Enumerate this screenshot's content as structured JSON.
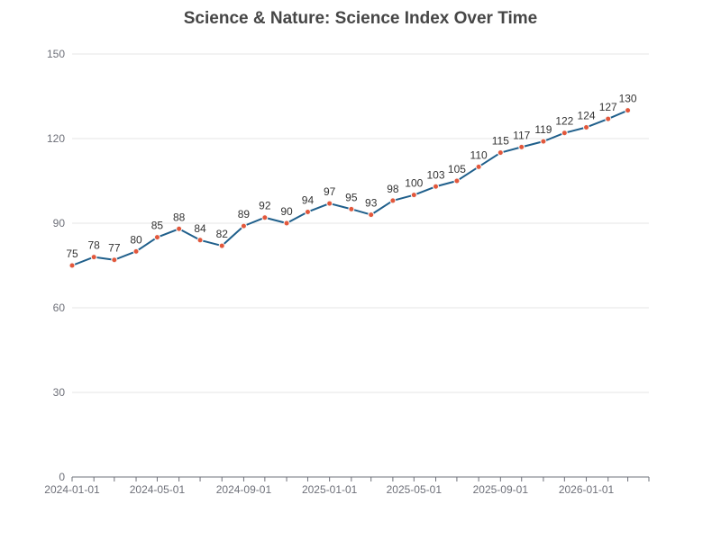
{
  "chart_data": {
    "type": "line",
    "title": "Science & Nature: Science Index Over Time",
    "xlabel": "",
    "ylabel": "",
    "x": [
      "2024-01-01",
      "2024-02-01",
      "2024-03-01",
      "2024-04-01",
      "2024-05-01",
      "2024-06-01",
      "2024-07-01",
      "2024-08-01",
      "2024-09-01",
      "2024-10-01",
      "2024-11-01",
      "2024-12-01",
      "2025-01-01",
      "2025-02-01",
      "2025-03-01",
      "2025-04-01",
      "2025-05-01",
      "2025-06-01",
      "2025-07-01",
      "2025-08-01",
      "2025-09-01",
      "2025-10-01",
      "2025-11-01",
      "2025-12-01",
      "2026-01-01",
      "2026-02-01",
      "2026-03-01"
    ],
    "series": [
      {
        "values": [
          75,
          78,
          77,
          80,
          85,
          88,
          84,
          82,
          89,
          92,
          90,
          94,
          97,
          95,
          93,
          98,
          100,
          103,
          105,
          110,
          115,
          117,
          119,
          122,
          124,
          127,
          130
        ]
      }
    ],
    "x_ticks": [
      "2024-01-01",
      "2024-05-01",
      "2024-09-01",
      "2025-01-01",
      "2025-05-01",
      "2025-09-01",
      "2026-01-01"
    ],
    "x_range": [
      "2024-01-01",
      "2026-03-31"
    ],
    "y_ticks": [
      0,
      30,
      60,
      90,
      120,
      150
    ],
    "ylim": [
      0,
      150
    ],
    "grid": "horizontal",
    "legend": "none",
    "data_labels": true,
    "colors": {
      "line": "#1f5f8b",
      "marker_fill": "#e2573b",
      "marker_stroke": "#f9f9f9",
      "grid": "#e6e6e6",
      "axis": "#6e7079"
    }
  }
}
